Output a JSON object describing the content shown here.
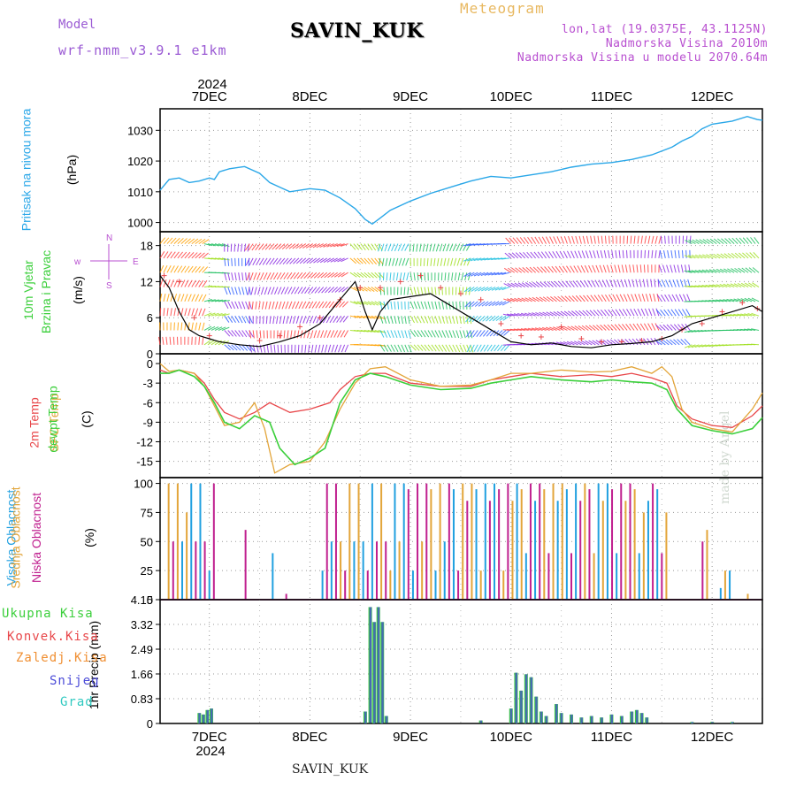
{
  "header": {
    "station": "SAVIN_KUK",
    "model_label": "Model",
    "model_name": "wrf-nmm_v3.9.1  e1km",
    "meteogram": "Meteogram",
    "lonlat": "lon,lat (19.0375E, 43.1125N)",
    "elevation": "Nadmorska Visina 2010m",
    "model_elevation": "Nadmorska Visina u modelu 2070.64m",
    "year": "2024",
    "watermark": "made by Angel",
    "bottom_name": "SAVIN_KUK"
  },
  "colors": {
    "pressure": "#2aa7e8",
    "temp2m": "#e8474a",
    "sfc": "#e3a53a",
    "dewpt": "#3bcf3b",
    "high": "#21a0e0",
    "mid": "#e3a53a",
    "low": "#c0208f",
    "total_precip": "#3bcf3b",
    "conv": "#e8474a",
    "freezing": "#f08f32",
    "snow": "#4b4bd8",
    "grad": "#2fc9c0",
    "wind_speed": "#000000",
    "gust": "#e8474a"
  },
  "chart_data": {
    "x_axis": {
      "days": [
        "7DEC",
        "8DEC",
        "9DEC",
        "10DEC",
        "11DEC",
        "12DEC"
      ],
      "year": "2024",
      "x_range_days": [
        6.51,
        12.5
      ],
      "grid": true
    },
    "panels": [
      {
        "id": "pressure",
        "type": "line",
        "ylabel": [
          "Pritisak na nivou mora",
          "(hPa)"
        ],
        "ylim": [
          997,
          1037
        ],
        "yticks": [
          1000,
          1010,
          1020,
          1030
        ],
        "series": [
          {
            "x": [
              6.51,
              6.6,
              6.7,
              6.8,
              6.9,
              7.0,
              7.05,
              7.1,
              7.2,
              7.35,
              7.5,
              7.6,
              7.7,
              7.8,
              8.0,
              8.15,
              8.3,
              8.45,
              8.55,
              8.62,
              8.7,
              8.8,
              9.0,
              9.2,
              9.4,
              9.6,
              9.8,
              10.0,
              10.2,
              10.4,
              10.6,
              10.8,
              11.0,
              11.2,
              11.4,
              11.6,
              11.7,
              11.8,
              11.9,
              12.0,
              12.2,
              12.35,
              12.45,
              12.5
            ],
            "y": [
              1010.5,
              1014,
              1014.5,
              1013,
              1013.5,
              1014.5,
              1014,
              1016.5,
              1017.5,
              1018.2,
              1016,
              1013,
              1011.5,
              1010,
              1011,
              1010.5,
              1008,
              1004.5,
              1001,
              999.5,
              1001.5,
              1004,
              1007,
              1009.5,
              1011.5,
              1013.5,
              1015,
              1014.5,
              1015.5,
              1016.5,
              1018,
              1019,
              1019.5,
              1020.5,
              1022,
              1024.5,
              1026.5,
              1028,
              1030.5,
              1032,
              1033,
              1034.5,
              1033.5,
              1033.3
            ]
          }
        ]
      },
      {
        "id": "wind",
        "type": "line",
        "ylabel": [
          "10m Vjetar",
          "Brzina i Pravac",
          "(m/s)"
        ],
        "compass": [
          "w",
          "E",
          "N",
          "S"
        ],
        "ylim": [
          0,
          20.3
        ],
        "yticks": [
          0,
          6,
          12,
          18
        ],
        "series": [
          {
            "id": "speed",
            "x": [
              6.51,
              6.6,
              6.7,
              6.8,
              6.9,
              7.0,
              7.1,
              7.3,
              7.5,
              7.7,
              7.9,
              8.1,
              8.3,
              8.45,
              8.55,
              8.62,
              8.7,
              8.8,
              9.0,
              9.2,
              9.4,
              9.6,
              9.8,
              10.0,
              10.2,
              10.4,
              10.6,
              10.8,
              11.0,
              11.2,
              11.4,
              11.6,
              11.8,
              12.0,
              12.2,
              12.4,
              12.5
            ],
            "y": [
              13,
              11,
              7,
              4,
              3,
              2.5,
              2,
              1.5,
              1.2,
              2,
              3,
              5,
              9,
              12,
              7,
              4,
              7,
              9,
              9.5,
              10,
              8,
              6,
              4,
              2,
              1.5,
              1.8,
              1.2,
              1,
              1.5,
              1.7,
              2,
              3,
              5,
              6,
              7,
              8,
              7
            ]
          },
          {
            "id": "gust",
            "x": [
              6.55,
              6.7,
              6.85,
              7.0,
              7.5,
              7.7,
              7.9,
              8.1,
              8.3,
              8.5,
              8.7,
              8.9,
              9.1,
              9.3,
              9.5,
              9.7,
              9.9,
              10.1,
              10.3,
              10.5,
              10.7,
              10.9,
              11.1,
              11.3,
              11.5,
              11.7,
              11.9,
              12.1,
              12.3,
              12.45
            ],
            "y": [
              13,
              12,
              6,
              3,
              2.2,
              3,
              4.5,
              6,
              9,
              11,
              11,
              12,
              13,
              11,
              10,
              9,
              5,
              3,
              2.8,
              4.5,
              2.5,
              2,
              2,
              2.2,
              2.5,
              4,
              5,
              7,
              8.5,
              7.5
            ]
          }
        ]
      },
      {
        "id": "temperature",
        "type": "line",
        "ylabel": [
          "2m Temp",
          "SFC Temp",
          "dewpt Temp",
          "(C)"
        ],
        "ylim": [
          -17.5,
          1.5
        ],
        "yticks": [
          0,
          -3,
          -6,
          -9,
          -12,
          -15
        ],
        "series": [
          {
            "id": "t2m",
            "x": [
              6.51,
              6.6,
              6.7,
              6.85,
              6.95,
              7.05,
              7.15,
              7.3,
              7.45,
              7.6,
              7.8,
              8.0,
              8.2,
              8.3,
              8.45,
              8.6,
              8.75,
              9.0,
              9.3,
              9.6,
              9.8,
              10.0,
              10.2,
              10.5,
              10.8,
              11.0,
              11.2,
              11.4,
              11.55,
              11.65,
              11.8,
              12.0,
              12.2,
              12.4,
              12.5
            ],
            "y": [
              -1,
              -1.5,
              -1,
              -1.5,
              -3,
              -5.5,
              -7.5,
              -8.5,
              -7.5,
              -6,
              -7.5,
              -7,
              -6,
              -4,
              -2,
              -1.5,
              -1.5,
              -3,
              -3.5,
              -3.5,
              -2.5,
              -2,
              -1.5,
              -2,
              -1.7,
              -2,
              -1.5,
              -2.2,
              -3,
              -6.5,
              -8.5,
              -9.5,
              -9.8,
              -8,
              -6.5
            ]
          },
          {
            "id": "sfc",
            "x": [
              6.51,
              6.6,
              6.7,
              6.85,
              6.95,
              7.05,
              7.15,
              7.3,
              7.45,
              7.55,
              7.65,
              7.8,
              8.0,
              8.15,
              8.3,
              8.45,
              8.6,
              8.75,
              9.0,
              9.3,
              9.6,
              9.8,
              10.0,
              10.2,
              10.5,
              10.8,
              11.0,
              11.2,
              11.4,
              11.5,
              11.6,
              11.7,
              11.8,
              12.0,
              12.2,
              12.4,
              12.5
            ],
            "y": [
              0,
              -1.2,
              -1,
              -1.5,
              -3.5,
              -6.5,
              -9.5,
              -9,
              -6,
              -10,
              -16.8,
              -15.5,
              -15,
              -12,
              -7,
              -3,
              -0.8,
              -0.5,
              -2.5,
              -3.5,
              -3.3,
              -2.5,
              -1.5,
              -1.5,
              -1,
              -1.3,
              -1.2,
              -0.5,
              -1.5,
              -0.5,
              -2,
              -7,
              -9,
              -10,
              -10.5,
              -7,
              -4.5
            ]
          },
          {
            "id": "dewpt",
            "x": [
              6.51,
              6.6,
              6.7,
              6.85,
              6.95,
              7.05,
              7.15,
              7.3,
              7.45,
              7.6,
              7.7,
              7.85,
              8.0,
              8.15,
              8.3,
              8.45,
              8.6,
              8.75,
              9.0,
              9.3,
              9.6,
              9.8,
              10.0,
              10.2,
              10.5,
              10.8,
              11.0,
              11.2,
              11.4,
              11.55,
              11.65,
              11.8,
              12.0,
              12.2,
              12.4,
              12.5
            ],
            "y": [
              -1.5,
              -1.5,
              -1,
              -2,
              -3.5,
              -6,
              -9,
              -10,
              -8,
              -9,
              -13,
              -15.5,
              -14.5,
              -13,
              -6,
              -2.5,
              -1.5,
              -2,
              -3.3,
              -4,
              -3.8,
              -3,
              -2.5,
              -2,
              -2.5,
              -2.8,
              -2.5,
              -2.8,
              -3,
              -4,
              -7,
              -9.5,
              -10.3,
              -10.8,
              -10,
              -8.3
            ]
          }
        ]
      },
      {
        "id": "cloud",
        "type": "bar",
        "ylabel": [
          "Visoka Oblacnost",
          "Srednja Oblacnost",
          "Niska Oblacnost",
          "(%)"
        ],
        "ylim": [
          0,
          105
        ],
        "yticks": [
          0,
          25,
          50,
          75,
          100
        ],
        "series": [
          {
            "id": "high",
            "note": "dense 100% bars 6.6-7.0 and 8.1-10.0, sparse elsewhere"
          },
          {
            "id": "mid",
            "values_sample": [
              100,
              100,
              85,
              50,
              100,
              100,
              100,
              95
            ]
          },
          {
            "id": "low",
            "values_sample": [
              100,
              100,
              100,
              100,
              100,
              50,
              40,
              50
            ]
          }
        ]
      },
      {
        "id": "precip",
        "type": "bar",
        "ylabel": [
          "1hr Precip (mm)"
        ],
        "legend": [
          "Ukupna Kisa",
          "Konvek.Kisa",
          "Zaledj.Kisa",
          "Snijeg",
          "Grad"
        ],
        "ylim": [
          0,
          4.15
        ],
        "yticks": [
          0,
          0.83,
          1.66,
          2.49,
          3.32,
          4.15
        ],
        "bars": [
          {
            "x": 6.9,
            "v": 0.35
          },
          {
            "x": 6.94,
            "v": 0.3
          },
          {
            "x": 6.98,
            "v": 0.45
          },
          {
            "x": 7.02,
            "v": 0.5
          },
          {
            "x": 8.55,
            "v": 0.4
          },
          {
            "x": 8.6,
            "v": 3.9
          },
          {
            "x": 8.64,
            "v": 3.4
          },
          {
            "x": 8.68,
            "v": 3.9
          },
          {
            "x": 8.72,
            "v": 3.4
          },
          {
            "x": 8.76,
            "v": 0.25
          },
          {
            "x": 9.7,
            "v": 0.1
          },
          {
            "x": 10.0,
            "v": 0.5
          },
          {
            "x": 10.05,
            "v": 1.7
          },
          {
            "x": 10.1,
            "v": 1.1
          },
          {
            "x": 10.15,
            "v": 1.65
          },
          {
            "x": 10.2,
            "v": 1.55
          },
          {
            "x": 10.25,
            "v": 0.9
          },
          {
            "x": 10.3,
            "v": 0.4
          },
          {
            "x": 10.35,
            "v": 0.25
          },
          {
            "x": 10.45,
            "v": 0.65
          },
          {
            "x": 10.5,
            "v": 0.35
          },
          {
            "x": 10.6,
            "v": 0.3
          },
          {
            "x": 10.7,
            "v": 0.2
          },
          {
            "x": 10.8,
            "v": 0.25
          },
          {
            "x": 10.9,
            "v": 0.2
          },
          {
            "x": 11.0,
            "v": 0.3
          },
          {
            "x": 11.1,
            "v": 0.25
          },
          {
            "x": 11.2,
            "v": 0.4
          },
          {
            "x": 11.25,
            "v": 0.45
          },
          {
            "x": 11.3,
            "v": 0.35
          },
          {
            "x": 11.35,
            "v": 0.2
          },
          {
            "x": 11.8,
            "v": 0.05
          },
          {
            "x": 12.0,
            "v": 0.05
          },
          {
            "x": 12.2,
            "v": 0.05
          }
        ]
      }
    ]
  }
}
